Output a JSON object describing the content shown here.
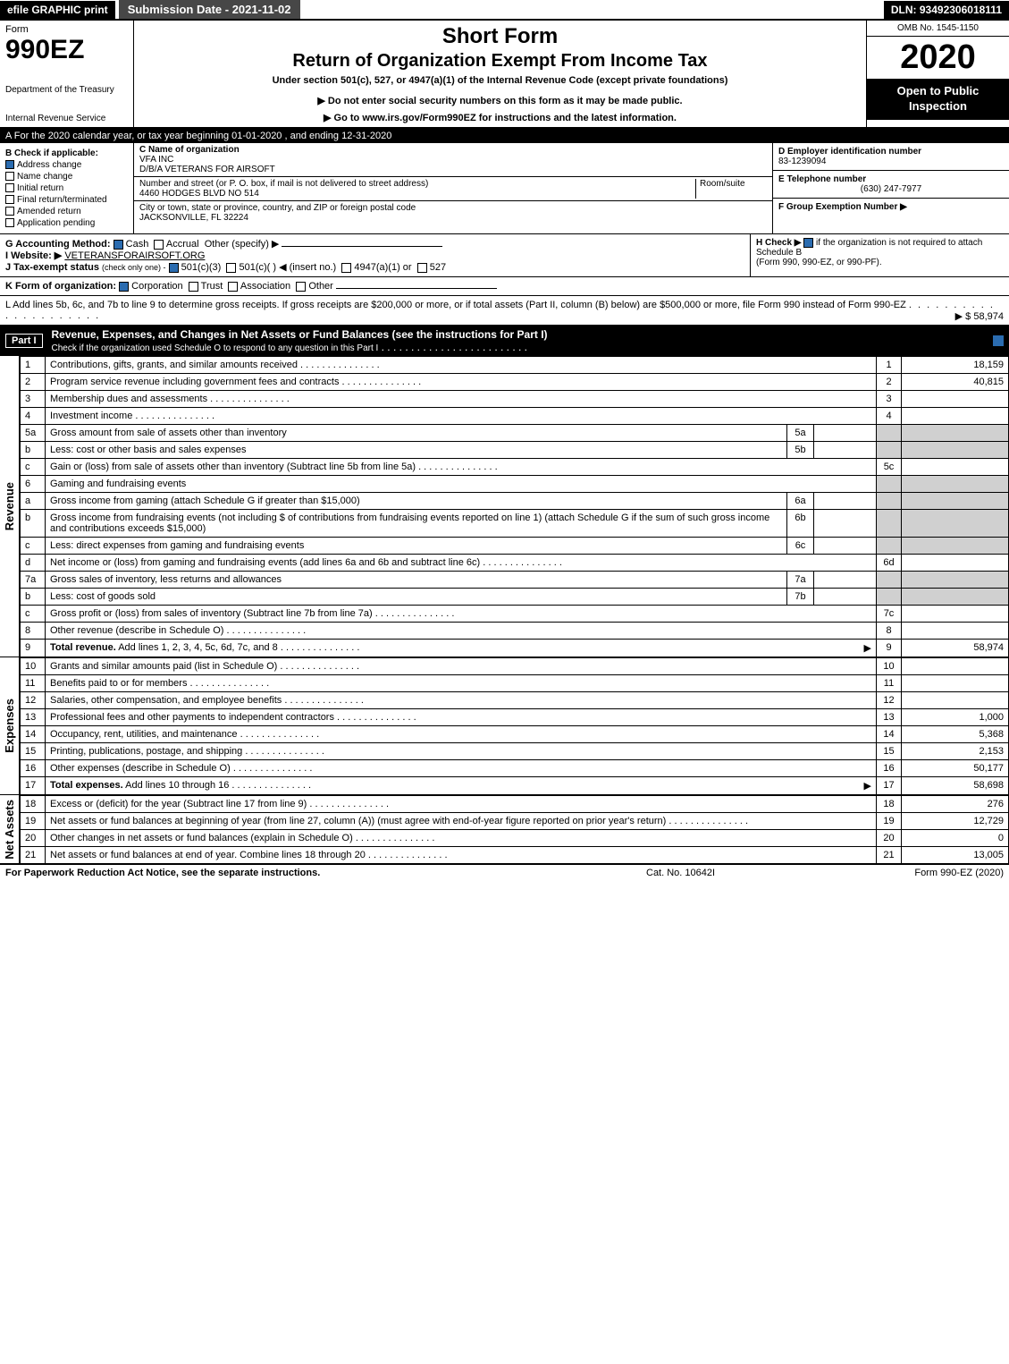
{
  "topbar": {
    "efile": "efile GRAPHIC print",
    "submission": "Submission Date - 2021-11-02",
    "dln": "DLN: 93492306018111"
  },
  "header": {
    "form_word": "Form",
    "form_number": "990EZ",
    "dept": "Department of the Treasury",
    "irs": "Internal Revenue Service",
    "short_form": "Short Form",
    "title": "Return of Organization Exempt From Income Tax",
    "subtitle": "Under section 501(c), 527, or 4947(a)(1) of the Internal Revenue Code (except private foundations)",
    "do_not_enter": "▶ Do not enter social security numbers on this form as it may be made public.",
    "goto": "▶ Go to www.irs.gov/Form990EZ for instructions and the latest information.",
    "omb": "OMB No. 1545-1150",
    "year": "2020",
    "open": "Open to Public Inspection"
  },
  "lineA": "A For the 2020 calendar year, or tax year beginning 01-01-2020 , and ending 12-31-2020",
  "boxB": {
    "label": "B Check if applicable:",
    "address_change": "Address change",
    "name_change": "Name change",
    "initial_return": "Initial return",
    "final_return": "Final return/terminated",
    "amended": "Amended return",
    "pending": "Application pending",
    "address_checked": true
  },
  "boxC": {
    "c_label": "C Name of organization",
    "org_name": "VFA INC",
    "dba": "D/B/A VETERANS FOR AIRSOFT",
    "addr_label": "Number and street (or P. O. box, if mail is not delivered to street address)",
    "room": "Room/suite",
    "street": "4460 HODGES BLVD NO 514",
    "city_label": "City or town, state or province, country, and ZIP or foreign postal code",
    "city": "JACKSONVILLE, FL  32224"
  },
  "boxD": {
    "d_label": "D Employer identification number",
    "ein": "83-1239094",
    "e_label": "E Telephone number",
    "phone": "(630) 247-7977",
    "f_label": "F Group Exemption Number ▶"
  },
  "lineG": {
    "label": "G Accounting Method:",
    "cash": "Cash",
    "accrual": "Accrual",
    "other": "Other (specify) ▶"
  },
  "lineH": {
    "label": "H Check ▶",
    "text1": "if the organization is not required to attach Schedule B",
    "text2": "(Form 990, 990-EZ, or 990-PF)."
  },
  "lineI": {
    "label": "I Website: ▶",
    "value": "VETERANSFORAIRSOFT.ORG"
  },
  "lineJ": {
    "label": "J Tax-exempt status",
    "sub": "(check only one) -",
    "opt1": "501(c)(3)",
    "opt2": "501(c)(  ) ◀ (insert no.)",
    "opt3": "4947(a)(1) or",
    "opt4": "527"
  },
  "lineK": {
    "label": "K Form of organization:",
    "corp": "Corporation",
    "trust": "Trust",
    "assoc": "Association",
    "other": "Other"
  },
  "lineL": {
    "text": "L Add lines 5b, 6c, and 7b to line 9 to determine gross receipts. If gross receipts are $200,000 or more, or if total assets (Part II, column (B) below) are $500,000 or more, file Form 990 instead of Form 990-EZ",
    "amount": "▶ $ 58,974"
  },
  "part1": {
    "num": "Part I",
    "title": "Revenue, Expenses, and Changes in Net Assets or Fund Balances (see the instructions for Part I)",
    "subtitle": "Check if the organization used Schedule O to respond to any question in this Part I"
  },
  "sections": {
    "revenue": "Revenue",
    "expenses": "Expenses",
    "netassets": "Net Assets"
  },
  "rows": [
    {
      "n": "1",
      "desc": "Contributions, gifts, grants, and similar amounts received",
      "rn": "1",
      "amt": "18,159"
    },
    {
      "n": "2",
      "desc": "Program service revenue including government fees and contracts",
      "rn": "2",
      "amt": "40,815"
    },
    {
      "n": "3",
      "desc": "Membership dues and assessments",
      "rn": "3",
      "amt": ""
    },
    {
      "n": "4",
      "desc": "Investment income",
      "rn": "4",
      "amt": ""
    },
    {
      "n": "5a",
      "desc": "Gross amount from sale of assets other than inventory",
      "sub": "5a",
      "subamt": ""
    },
    {
      "n": "b",
      "desc": "Less: cost or other basis and sales expenses",
      "sub": "5b",
      "subamt": ""
    },
    {
      "n": "c",
      "desc": "Gain or (loss) from sale of assets other than inventory (Subtract line 5b from line 5a)",
      "rn": "5c",
      "amt": ""
    },
    {
      "n": "6",
      "desc": "Gaming and fundraising events"
    },
    {
      "n": "a",
      "desc": "Gross income from gaming (attach Schedule G if greater than $15,000)",
      "sub": "6a",
      "subamt": ""
    },
    {
      "n": "b",
      "desc": "Gross income from fundraising events (not including $                 of contributions from fundraising events reported on line 1) (attach Schedule G if the sum of such gross income and contributions exceeds $15,000)",
      "sub": "6b",
      "subamt": ""
    },
    {
      "n": "c",
      "desc": "Less: direct expenses from gaming and fundraising events",
      "sub": "6c",
      "subamt": ""
    },
    {
      "n": "d",
      "desc": "Net income or (loss) from gaming and fundraising events (add lines 6a and 6b and subtract line 6c)",
      "rn": "6d",
      "amt": ""
    },
    {
      "n": "7a",
      "desc": "Gross sales of inventory, less returns and allowances",
      "sub": "7a",
      "subamt": ""
    },
    {
      "n": "b",
      "desc": "Less: cost of goods sold",
      "sub": "7b",
      "subamt": ""
    },
    {
      "n": "c",
      "desc": "Gross profit or (loss) from sales of inventory (Subtract line 7b from line 7a)",
      "rn": "7c",
      "amt": ""
    },
    {
      "n": "8",
      "desc": "Other revenue (describe in Schedule O)",
      "rn": "8",
      "amt": ""
    },
    {
      "n": "9",
      "desc": "Total revenue. Add lines 1, 2, 3, 4, 5c, 6d, 7c, and 8",
      "rn": "9",
      "amt": "58,974",
      "bold": true,
      "arrow": true
    }
  ],
  "exp_rows": [
    {
      "n": "10",
      "desc": "Grants and similar amounts paid (list in Schedule O)",
      "rn": "10",
      "amt": ""
    },
    {
      "n": "11",
      "desc": "Benefits paid to or for members",
      "rn": "11",
      "amt": ""
    },
    {
      "n": "12",
      "desc": "Salaries, other compensation, and employee benefits",
      "rn": "12",
      "amt": ""
    },
    {
      "n": "13",
      "desc": "Professional fees and other payments to independent contractors",
      "rn": "13",
      "amt": "1,000"
    },
    {
      "n": "14",
      "desc": "Occupancy, rent, utilities, and maintenance",
      "rn": "14",
      "amt": "5,368"
    },
    {
      "n": "15",
      "desc": "Printing, publications, postage, and shipping",
      "rn": "15",
      "amt": "2,153"
    },
    {
      "n": "16",
      "desc": "Other expenses (describe in Schedule O)",
      "rn": "16",
      "amt": "50,177"
    },
    {
      "n": "17",
      "desc": "Total expenses. Add lines 10 through 16",
      "rn": "17",
      "amt": "58,698",
      "bold": true,
      "arrow": true
    }
  ],
  "na_rows": [
    {
      "n": "18",
      "desc": "Excess or (deficit) for the year (Subtract line 17 from line 9)",
      "rn": "18",
      "amt": "276"
    },
    {
      "n": "19",
      "desc": "Net assets or fund balances at beginning of year (from line 27, column (A)) (must agree with end-of-year figure reported on prior year's return)",
      "rn": "19",
      "amt": "12,729"
    },
    {
      "n": "20",
      "desc": "Other changes in net assets or fund balances (explain in Schedule O)",
      "rn": "20",
      "amt": "0"
    },
    {
      "n": "21",
      "desc": "Net assets or fund balances at end of year. Combine lines 18 through 20",
      "rn": "21",
      "amt": "13,005"
    }
  ],
  "footer": {
    "left": "For Paperwork Reduction Act Notice, see the separate instructions.",
    "mid": "Cat. No. 10642I",
    "right": "Form 990-EZ (2020)"
  },
  "colors": {
    "black": "#000000",
    "white": "#ffffff",
    "shade": "#d0d0d0",
    "check_blue": "#2b6cb0"
  }
}
